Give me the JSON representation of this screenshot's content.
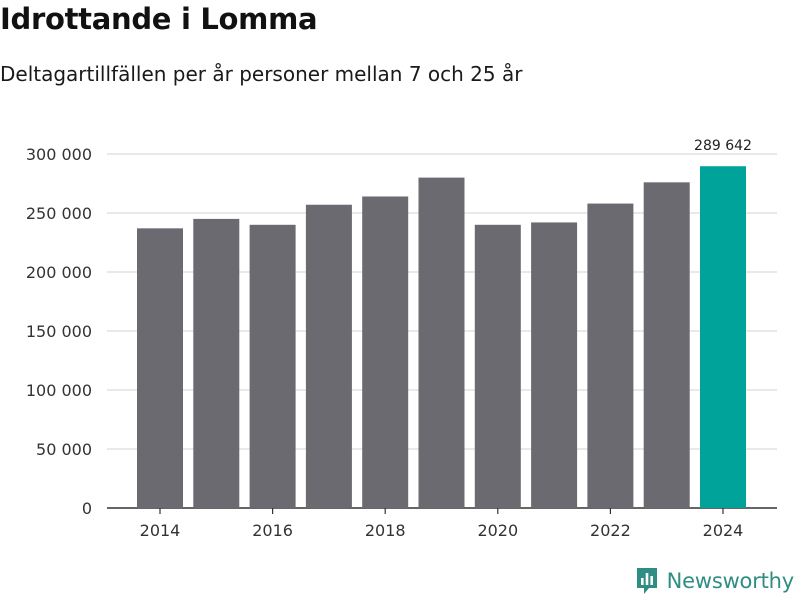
{
  "title": "Idrottande i Lomma",
  "subtitle": "Deltagartillfällen per år personer mellan 7 och 25 år",
  "brand": "Newsworthy",
  "colors": {
    "bar": "#6b6a70",
    "highlight": "#00a39a",
    "grid": "#dcdcdc",
    "brand": "#2f8d84"
  },
  "chart_data": {
    "type": "bar",
    "title": "Idrottande i Lomma",
    "subtitle": "Deltagartillfällen per år personer mellan 7 och 25 år",
    "xlabel": "",
    "ylabel": "",
    "categories": [
      "2014",
      "2015",
      "2016",
      "2017",
      "2018",
      "2019",
      "2020",
      "2021",
      "2022",
      "2023",
      "2024"
    ],
    "values": [
      237000,
      245000,
      240000,
      257000,
      264000,
      280000,
      240000,
      242000,
      258000,
      276000,
      289642
    ],
    "ylim": [
      0,
      300000
    ],
    "yticks": [
      0,
      50000,
      100000,
      150000,
      200000,
      250000,
      300000
    ],
    "ytick_labels": [
      "0",
      "50 000",
      "100 000",
      "150 000",
      "200 000",
      "250 000",
      "300 000"
    ],
    "xtick_labels": [
      "2014",
      "2016",
      "2018",
      "2020",
      "2022",
      "2024"
    ],
    "highlight_category": "2024",
    "data_labels": [
      {
        "category": "2024",
        "text": "289 642"
      }
    ],
    "grid": true,
    "legend": "none"
  }
}
